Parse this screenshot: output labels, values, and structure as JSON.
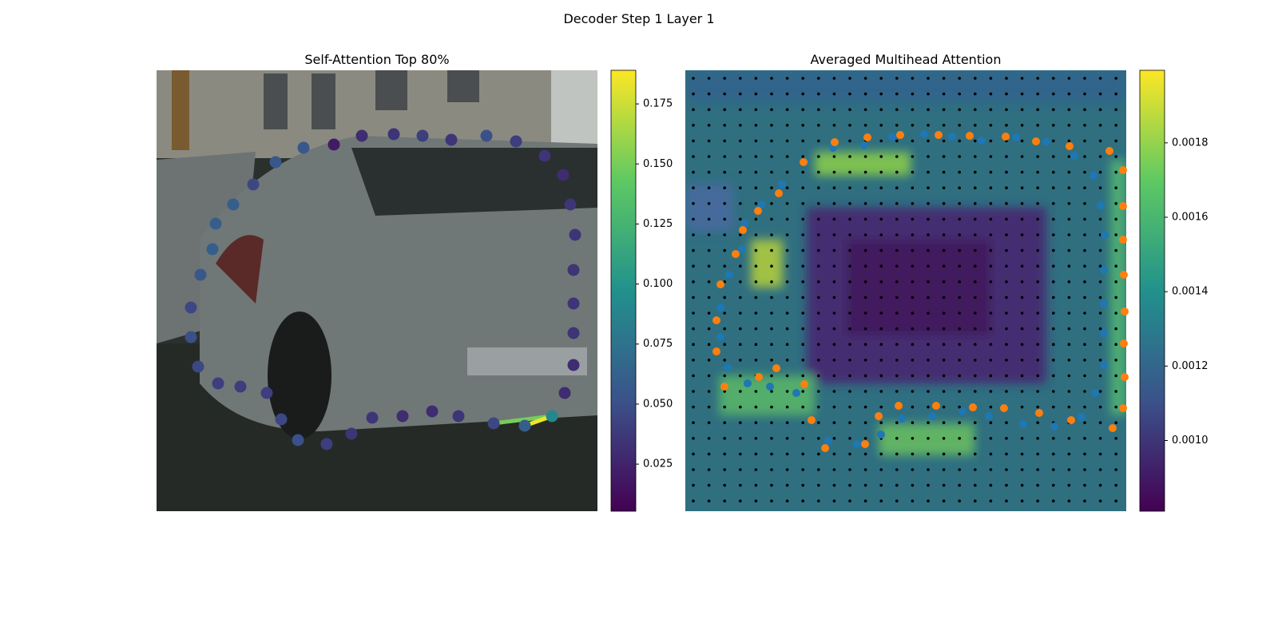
{
  "title": "Decoder Step 1 Layer 1",
  "panels": [
    {
      "title": "Self-Attention Top 80%",
      "colorbar": {
        "lim": [
          0.0054,
          0.189
        ],
        "ticks": [
          0.025,
          {
            "value": 0.05,
            "label": "0.050"
          },
          0.075,
          {
            "value": 0.1,
            "label": "0.100"
          },
          0.125,
          {
            "value": 0.15,
            "label": "0.150"
          },
          0.175
        ]
      },
      "attention": [
        0.02,
        0.03,
        0.035,
        0.04,
        0.035,
        0.05,
        0.04,
        0.035,
        0.03,
        0.035,
        0.035,
        0.035,
        0.035,
        0.035,
        0.03,
        0.03,
        0.09,
        0.06,
        0.045,
        0.035,
        0.03,
        0.03,
        0.035,
        0.035,
        0.04,
        0.05,
        0.045,
        0.04,
        0.04,
        0.04,
        0.045,
        0.05,
        0.045,
        0.055,
        0.06,
        0.06,
        0.06,
        0.045,
        0.055,
        0.055
      ],
      "edge_attention": [
        0.15,
        0.185
      ]
    },
    {
      "title": "Averaged Multihead Attention",
      "colorbar": {
        "lim": [
          0.00081,
          0.001995
        ],
        "ticks": [
          {
            "value": 0.001,
            "label": "0.0010"
          },
          0.0012,
          0.0014,
          0.0016,
          0.0018
        ]
      }
    }
  ]
}
